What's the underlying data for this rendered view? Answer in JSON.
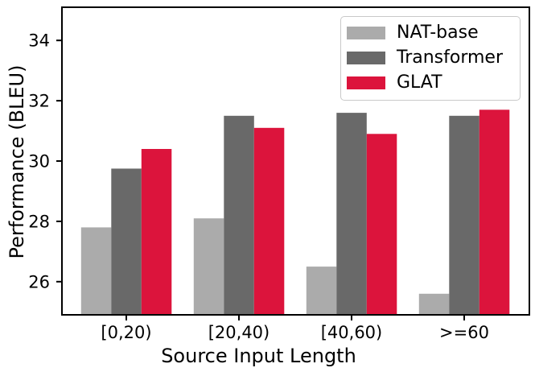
{
  "figure": {
    "background": "#ffffff",
    "axis_color": "#000000",
    "legend_border_color": "#c9c9c9"
  },
  "chart_data": {
    "type": "bar",
    "title": "",
    "xlabel": "Source Input Length",
    "ylabel": "Performance (BLEU)",
    "categories": [
      "[0,20)",
      "[20,40)",
      "[40,60)",
      ">=60"
    ],
    "series": [
      {
        "name": "NAT-base",
        "color": "#ababab",
        "values": [
          27.8,
          28.1,
          26.5,
          25.6
        ]
      },
      {
        "name": "Transformer",
        "color": "#696969",
        "values": [
          29.75,
          31.5,
          31.6,
          31.5
        ]
      },
      {
        "name": "GLAT",
        "color": "#dc143c",
        "values": [
          30.4,
          31.1,
          30.9,
          31.7
        ]
      }
    ],
    "yticks": [
      26,
      28,
      30,
      32,
      34
    ],
    "ylim": [
      24.9,
      35.1
    ],
    "grid": false,
    "legend_position": "upper right"
  }
}
